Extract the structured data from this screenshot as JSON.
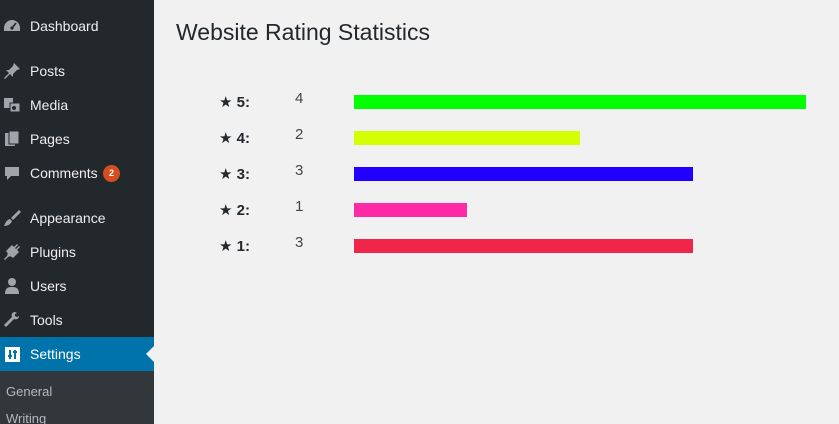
{
  "sidebar": {
    "items": [
      {
        "label": "Dashboard",
        "icon": "dashboard-icon"
      },
      {
        "label": "Posts",
        "icon": "pin-icon"
      },
      {
        "label": "Media",
        "icon": "media-icon"
      },
      {
        "label": "Pages",
        "icon": "pages-icon"
      },
      {
        "label": "Comments",
        "icon": "comment-icon",
        "badge": "2"
      },
      {
        "label": "Appearance",
        "icon": "paintbrush-icon"
      },
      {
        "label": "Plugins",
        "icon": "plug-icon"
      },
      {
        "label": "Users",
        "icon": "user-icon"
      },
      {
        "label": "Tools",
        "icon": "wrench-icon"
      },
      {
        "label": "Settings",
        "icon": "settings-icon",
        "active": true
      }
    ],
    "submenu": [
      "General",
      "Writing"
    ]
  },
  "page": {
    "title": "Website Rating Statistics"
  },
  "ratings": [
    {
      "label": "★ 5:",
      "count": "4",
      "color": "#00ff00"
    },
    {
      "label": "★ 4:",
      "count": "2",
      "color": "#d4ff00"
    },
    {
      "label": "★ 3:",
      "count": "3",
      "color": "#2200ff"
    },
    {
      "label": "★ 2:",
      "count": "1",
      "color": "#ff2ba6"
    },
    {
      "label": "★ 1:",
      "count": "3",
      "color": "#f0254a"
    }
  ],
  "max_count": 4,
  "colors": {
    "sidebar_bg": "#23282d",
    "active_bg": "#0073aa",
    "badge": "#d54e21"
  }
}
